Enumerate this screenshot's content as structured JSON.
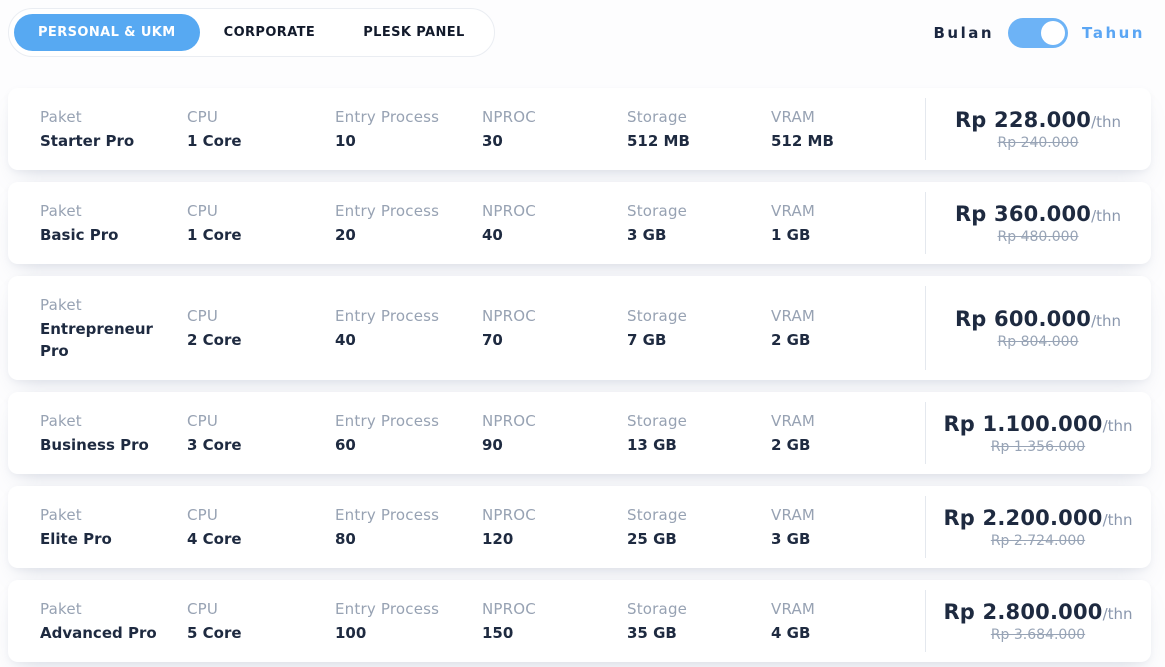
{
  "tabs": [
    {
      "label": "PERSONAL & UKM",
      "active": true
    },
    {
      "label": "CORPORATE",
      "active": false
    },
    {
      "label": "PLESK PANEL",
      "active": false
    }
  ],
  "period_toggle": {
    "left_label": "Bulan",
    "right_label": "Tahun",
    "selected": "Tahun"
  },
  "columns": {
    "paket": "Paket",
    "cpu": "CPU",
    "entry": "Entry Process",
    "nproc": "NPROC",
    "storage": "Storage",
    "vram": "VRAM"
  },
  "price_suffix": "/thn",
  "plans": [
    {
      "name": "Starter Pro",
      "cpu": "1 Core",
      "entry_process": "10",
      "nproc": "30",
      "storage": "512 MB",
      "vram": "512 MB",
      "price": "Rp 228.000",
      "old_price": "Rp 240.000"
    },
    {
      "name": "Basic Pro",
      "cpu": "1 Core",
      "entry_process": "20",
      "nproc": "40",
      "storage": "3 GB",
      "vram": "1 GB",
      "price": "Rp 360.000",
      "old_price": "Rp 480.000"
    },
    {
      "name": "Entrepreneur Pro",
      "cpu": "2 Core",
      "entry_process": "40",
      "nproc": "70",
      "storage": "7 GB",
      "vram": "2 GB",
      "price": "Rp 600.000",
      "old_price": "Rp 804.000"
    },
    {
      "name": "Business Pro",
      "cpu": "3 Core",
      "entry_process": "60",
      "nproc": "90",
      "storage": "13 GB",
      "vram": "2 GB",
      "price": "Rp 1.100.000",
      "old_price": "Rp 1.356.000"
    },
    {
      "name": "Elite Pro",
      "cpu": "4 Core",
      "entry_process": "80",
      "nproc": "120",
      "storage": "25 GB",
      "vram": "3 GB",
      "price": "Rp 2.200.000",
      "old_price": "Rp 2.724.000"
    },
    {
      "name": "Advanced Pro",
      "cpu": "5 Core",
      "entry_process": "100",
      "nproc": "150",
      "storage": "35 GB",
      "vram": "4 GB",
      "price": "Rp 2.800.000",
      "old_price": "Rp 3.684.000"
    }
  ],
  "colors": {
    "accent_blue": "#57a9f2",
    "toggle_blue": "#6db3f6",
    "link_blue": "#5ba6f4",
    "text_dark": "#1e2a40",
    "text_muted": "#97a2b3"
  }
}
